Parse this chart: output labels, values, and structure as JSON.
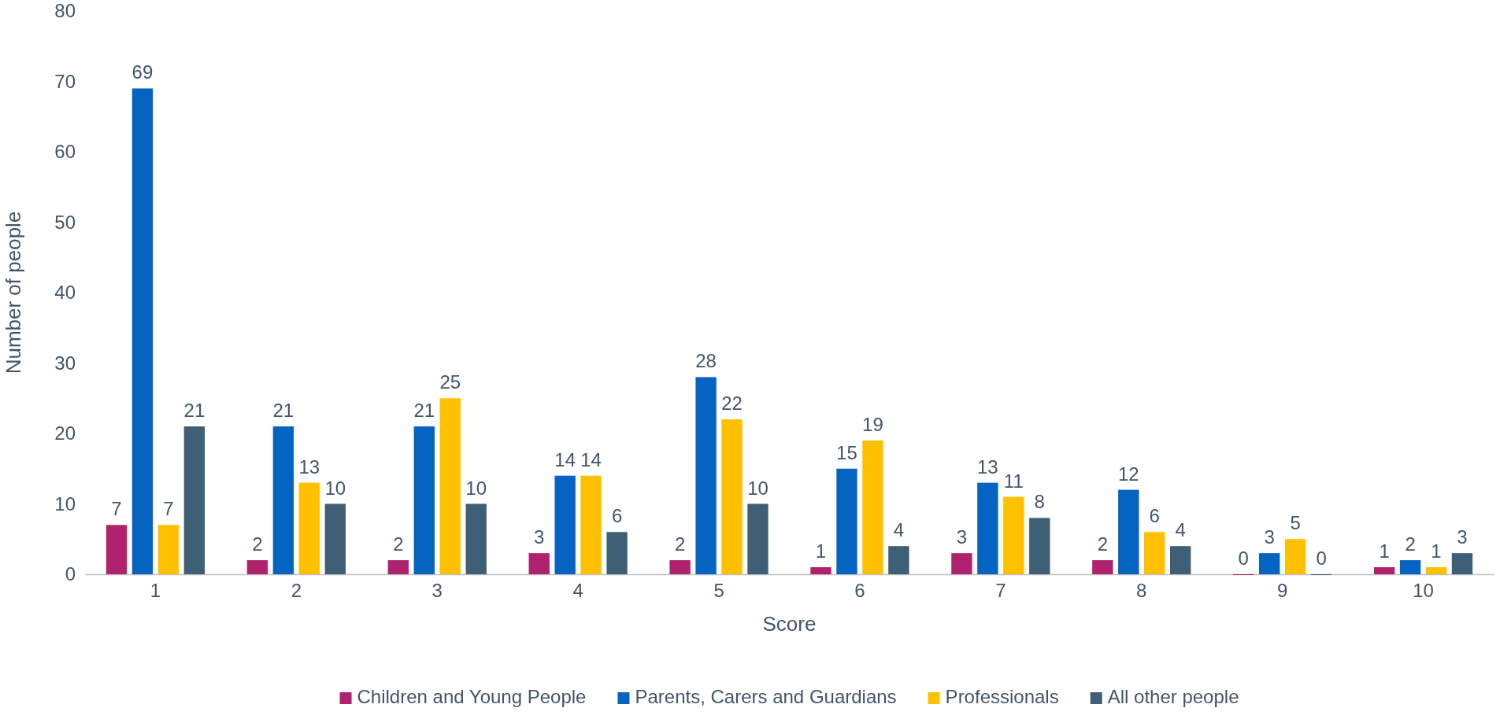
{
  "chart_data": {
    "type": "bar",
    "xlabel": "Score",
    "ylabel": "Number of people",
    "categories": [
      "1",
      "2",
      "3",
      "4",
      "5",
      "6",
      "7",
      "8",
      "9",
      "10"
    ],
    "series": [
      {
        "name": "Children and Young People",
        "color": "#b0226e",
        "values": [
          7,
          2,
          2,
          3,
          2,
          1,
          3,
          2,
          0,
          1
        ]
      },
      {
        "name": "Parents, Carers and Guardians",
        "color": "#0563c1",
        "values": [
          69,
          21,
          21,
          14,
          28,
          15,
          13,
          12,
          3,
          2
        ]
      },
      {
        "name": "Professionals",
        "color": "#ffc000",
        "values": [
          7,
          13,
          25,
          14,
          22,
          19,
          11,
          6,
          5,
          1
        ]
      },
      {
        "name": "All other people",
        "color": "#3e5f75",
        "values": [
          21,
          10,
          10,
          6,
          10,
          4,
          8,
          4,
          0,
          3
        ]
      }
    ],
    "ylim": [
      0,
      80
    ],
    "yticks": [
      0,
      10,
      20,
      30,
      40,
      50,
      60,
      70,
      80
    ],
    "grid": false,
    "data_labels": true,
    "legend": "bottom"
  }
}
